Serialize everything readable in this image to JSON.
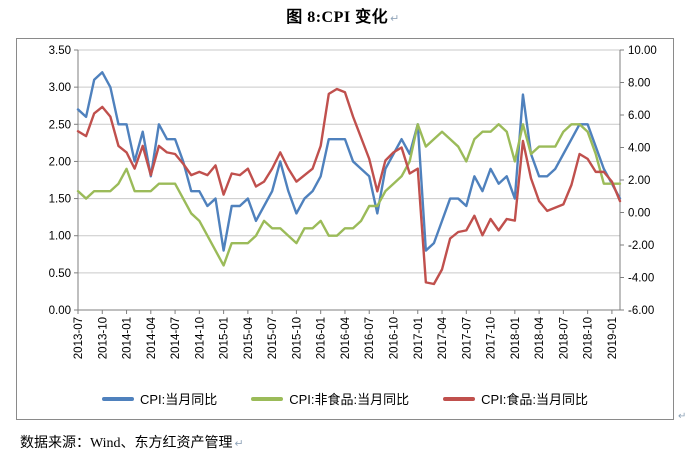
{
  "title": {
    "text": "图 8:CPI 变化",
    "return_mark": "↵"
  },
  "source_note": {
    "text": "数据来源：Wind、东方红资产管理",
    "return_mark": "↵"
  },
  "cell_end_mark": "↵",
  "colors": {
    "cpi_line": "#4F81BD",
    "nonfood_line": "#9BBB59",
    "food_line": "#C0504D",
    "gridline": "#c9c9c9",
    "axis_line": "#7f7f7f",
    "box_border": "#8a8a8a",
    "label_text": "#000000"
  },
  "chart_data": {
    "type": "line",
    "title": "图 8:CPI 变化",
    "xlabel": "",
    "ylabel_left": "",
    "ylabel_right": "",
    "grid": true,
    "legend_position": "bottom",
    "x": [
      "2013-07",
      "2013-08",
      "2013-09",
      "2013-10",
      "2013-11",
      "2013-12",
      "2014-01",
      "2014-02",
      "2014-03",
      "2014-04",
      "2014-05",
      "2014-06",
      "2014-07",
      "2014-08",
      "2014-09",
      "2014-10",
      "2014-11",
      "2014-12",
      "2015-01",
      "2015-02",
      "2015-03",
      "2015-04",
      "2015-05",
      "2015-06",
      "2015-07",
      "2015-08",
      "2015-09",
      "2015-10",
      "2015-11",
      "2015-12",
      "2016-01",
      "2016-02",
      "2016-03",
      "2016-04",
      "2016-05",
      "2016-06",
      "2016-07",
      "2016-08",
      "2016-09",
      "2016-10",
      "2016-11",
      "2016-12",
      "2017-01",
      "2017-02",
      "2017-03",
      "2017-04",
      "2017-05",
      "2017-06",
      "2017-07",
      "2017-08",
      "2017-09",
      "2017-10",
      "2017-11",
      "2017-12",
      "2018-01",
      "2018-02",
      "2018-03",
      "2018-04",
      "2018-05",
      "2018-06",
      "2018-07",
      "2018-08",
      "2018-09",
      "2018-10",
      "2018-11",
      "2018-12",
      "2019-01",
      "2019-02"
    ],
    "x_tick_every": 3,
    "x_tick_labels": [
      "2013-07",
      "2013-10",
      "2014-01",
      "2014-04",
      "2014-07",
      "2014-10",
      "2015-01",
      "2015-04",
      "2015-07",
      "2015-10",
      "2016-01",
      "2016-04",
      "2016-07",
      "2016-10",
      "2017-01",
      "2017-04",
      "2017-07",
      "2017-10",
      "2018-01",
      "2018-04",
      "2018-07",
      "2018-10",
      "2019-01"
    ],
    "left_axis": {
      "min": 0.0,
      "max": 3.5,
      "step": 0.5,
      "ticks": [
        "3.50",
        "3.00",
        "2.50",
        "2.00",
        "1.50",
        "1.00",
        "0.50",
        "0.00"
      ]
    },
    "right_axis": {
      "min": -6.0,
      "max": 10.0,
      "step": 2.0,
      "ticks": [
        "10.00",
        "8.00",
        "6.00",
        "4.00",
        "2.00",
        "0.00",
        "-2.00",
        "-4.00",
        "-6.00"
      ]
    },
    "series": [
      {
        "name": "CPI:当月同比",
        "axis": "left",
        "color": "#4F81BD",
        "values": [
          2.7,
          2.6,
          3.1,
          3.2,
          3.0,
          2.5,
          2.5,
          2.0,
          2.4,
          1.8,
          2.5,
          2.3,
          2.3,
          2.0,
          1.6,
          1.6,
          1.4,
          1.5,
          0.8,
          1.4,
          1.4,
          1.5,
          1.2,
          1.4,
          1.6,
          2.0,
          1.6,
          1.3,
          1.5,
          1.6,
          1.8,
          2.3,
          2.3,
          2.3,
          2.0,
          1.9,
          1.8,
          1.3,
          1.9,
          2.1,
          2.3,
          2.1,
          2.5,
          0.8,
          0.9,
          1.2,
          1.5,
          1.5,
          1.4,
          1.8,
          1.6,
          1.9,
          1.7,
          1.8,
          1.5,
          2.9,
          2.1,
          1.8,
          1.8,
          1.9,
          2.1,
          2.3,
          2.5,
          2.5,
          2.2,
          1.9,
          1.7,
          1.5
        ]
      },
      {
        "name": "CPI:非食品:当月同比",
        "axis": "left",
        "color": "#9BBB59",
        "values": [
          1.6,
          1.5,
          1.6,
          1.6,
          1.6,
          1.7,
          1.9,
          1.6,
          1.6,
          1.6,
          1.7,
          1.7,
          1.7,
          1.5,
          1.3,
          1.2,
          1.0,
          0.8,
          0.6,
          0.9,
          0.9,
          0.9,
          1.0,
          1.2,
          1.1,
          1.1,
          1.0,
          0.9,
          1.1,
          1.1,
          1.2,
          1.0,
          1.0,
          1.1,
          1.1,
          1.2,
          1.4,
          1.4,
          1.6,
          1.7,
          1.8,
          2.0,
          2.5,
          2.2,
          2.3,
          2.4,
          2.3,
          2.2,
          2.0,
          2.3,
          2.4,
          2.4,
          2.5,
          2.4,
          2.0,
          2.5,
          2.1,
          2.2,
          2.2,
          2.2,
          2.4,
          2.5,
          2.5,
          2.4,
          2.1,
          1.7,
          1.7,
          1.7
        ]
      },
      {
        "name": "CPI:食品:当月同比",
        "axis": "right",
        "color": "#C0504D",
        "values": [
          5.0,
          4.7,
          6.1,
          6.5,
          5.9,
          4.1,
          3.7,
          2.7,
          4.1,
          2.3,
          4.1,
          3.7,
          3.6,
          3.0,
          2.3,
          2.5,
          2.3,
          2.9,
          1.1,
          2.4,
          2.3,
          2.7,
          1.6,
          1.9,
          2.7,
          3.7,
          2.7,
          1.9,
          2.3,
          2.7,
          4.1,
          7.3,
          7.6,
          7.4,
          5.9,
          4.6,
          3.3,
          1.3,
          3.2,
          3.7,
          4.0,
          2.4,
          2.7,
          -4.3,
          -4.4,
          -3.5,
          -1.6,
          -1.2,
          -1.1,
          -0.2,
          -1.4,
          -0.4,
          -1.1,
          -0.4,
          -0.5,
          4.4,
          2.1,
          0.7,
          0.1,
          0.3,
          0.5,
          1.7,
          3.6,
          3.3,
          2.5,
          2.5,
          1.9,
          0.7
        ]
      }
    ]
  }
}
